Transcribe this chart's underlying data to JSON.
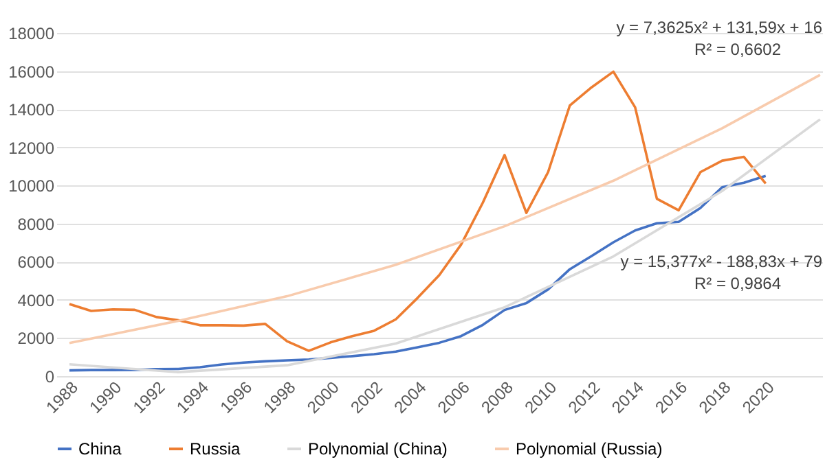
{
  "chart_data": {
    "type": "line",
    "x": [
      1988,
      1989,
      1990,
      1991,
      1992,
      1993,
      1994,
      1995,
      1996,
      1997,
      1998,
      1999,
      2000,
      2001,
      2002,
      2003,
      2004,
      2005,
      2006,
      2007,
      2008,
      2009,
      2010,
      2011,
      2012,
      2013,
      2014,
      2015,
      2016,
      2017,
      2018,
      2019,
      2020
    ],
    "series": [
      {
        "name": "China",
        "color": "#4472c4",
        "values": [
          300,
          320,
          320,
          330,
          370,
          380,
          470,
          610,
          710,
          780,
          830,
          870,
          960,
          1050,
          1150,
          1290,
          1510,
          1750,
          2100,
          2690,
          3470,
          3830,
          4550,
          5610,
          6300,
          7020,
          7640,
          8020,
          8090,
          8820,
          9910,
          10140,
          10500
        ]
      },
      {
        "name": "Russia",
        "color": "#ed7d31",
        "values": [
          3780,
          3420,
          3500,
          3480,
          3100,
          2930,
          2670,
          2670,
          2650,
          2740,
          1830,
          1330,
          1770,
          2100,
          2380,
          2980,
          4100,
          5300,
          6900,
          9100,
          11600,
          8560,
          10700,
          14200,
          15150,
          15970,
          14100,
          9300,
          8700,
          10700,
          11300,
          11500,
          10100
        ]
      },
      {
        "name": "Polynomial (China)",
        "color": "#d9d9d9",
        "x": [
          1988,
          1993,
          1998,
          2003,
          2008,
          2013,
          2018,
          2022.5
        ],
        "values": [
          620,
          210,
          570,
          1710,
          3610,
          6280,
          9710,
          13470
        ]
      },
      {
        "name": "Polynomial (Russia)",
        "color": "#f8cbad",
        "x": [
          1988,
          1993,
          1998,
          2003,
          2008,
          2013,
          2018,
          2022.5
        ],
        "values": [
          1740,
          2900,
          4190,
          5840,
          7860,
          10250,
          13000,
          15800
        ]
      }
    ],
    "xlim": [
      1987.4,
      2022.6
    ],
    "xticks": [
      1988,
      1990,
      1992,
      1994,
      1996,
      1998,
      2000,
      2002,
      2004,
      2006,
      2008,
      2010,
      2012,
      2014,
      2016,
      2018,
      2020
    ],
    "ylim": [
      0,
      18000
    ],
    "yticks": [
      0,
      2000,
      4000,
      6000,
      8000,
      10000,
      12000,
      14000,
      16000,
      18000
    ],
    "grid": "y",
    "legend": "bottom",
    "line_style": "solid",
    "marker": "none",
    "annotations": [
      "y = 7,3625x² + 131,59x + 16",
      "R² = 0,6602",
      "y = 15,377x² - 188,83x + 79",
      "R² = 0,9864"
    ]
  }
}
